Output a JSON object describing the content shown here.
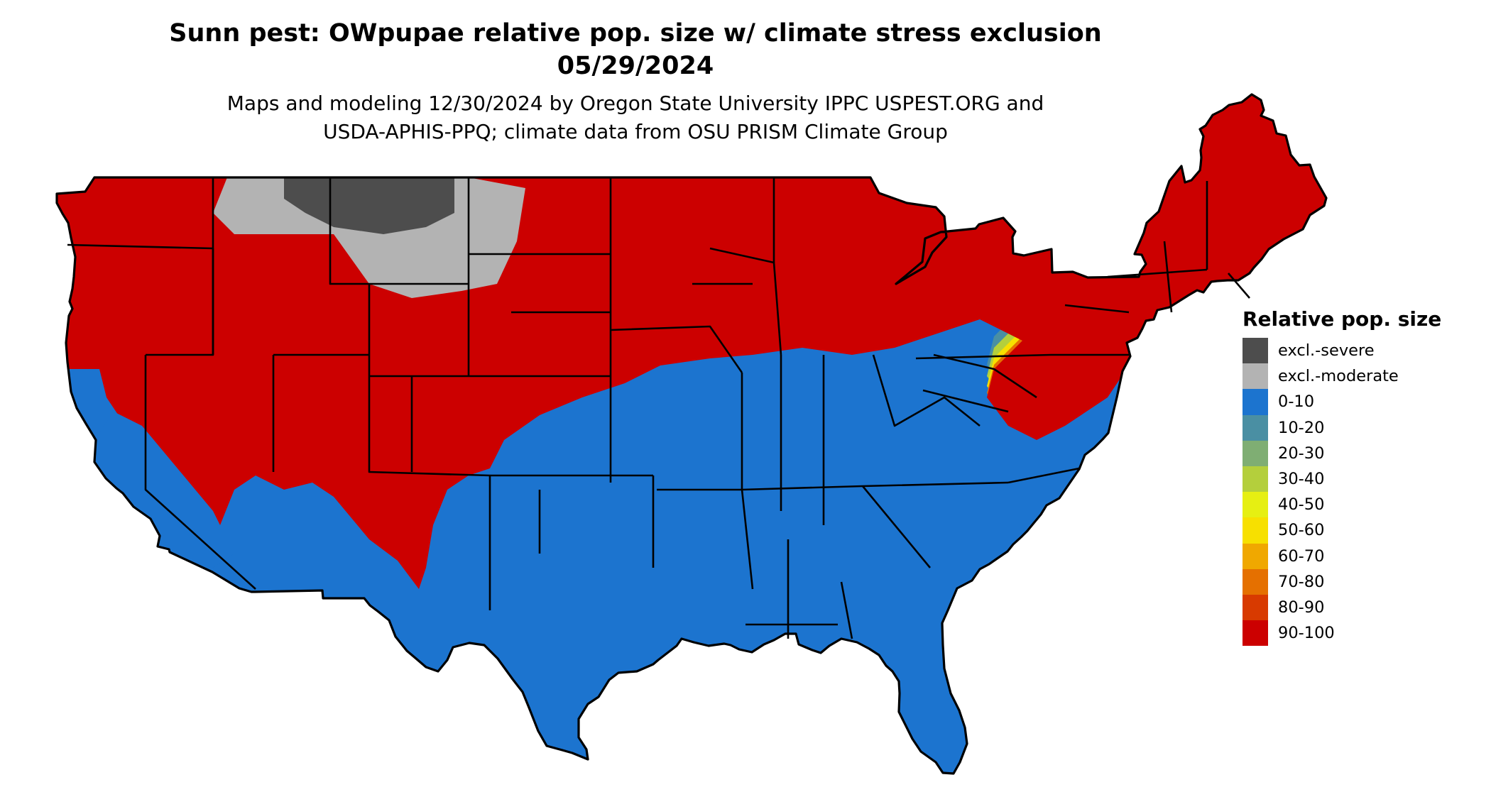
{
  "title": {
    "line1": "Sunn pest: OWpupae relative pop. size w/ climate stress exclusion",
    "line2": "05/29/2024"
  },
  "subtitle": {
    "line1": "Maps and modeling 12/30/2024 by Oregon State University IPPC USPEST.ORG and",
    "line2": "USDA-APHIS-PPQ; climate data from OSU PRISM Climate Group"
  },
  "legend": {
    "title": "Relative pop. size",
    "items": [
      {
        "label": "excl.-severe",
        "color": "#4d4d4d"
      },
      {
        "label": "excl.-moderate",
        "color": "#b3b3b3"
      },
      {
        "label": "0-10",
        "color": "#1c74cf"
      },
      {
        "label": "10-20",
        "color": "#4a8fa3"
      },
      {
        "label": "20-30",
        "color": "#7fae73"
      },
      {
        "label": "30-40",
        "color": "#b4cf3c"
      },
      {
        "label": "40-50",
        "color": "#e6ef12"
      },
      {
        "label": "50-60",
        "color": "#f7e000"
      },
      {
        "label": "60-70",
        "color": "#f0a800"
      },
      {
        "label": "70-80",
        "color": "#e57000"
      },
      {
        "label": "80-90",
        "color": "#d83a00"
      },
      {
        "label": "90-100",
        "color": "#cc0000"
      }
    ]
  },
  "map": {
    "region": "Contiguous United States",
    "colors": {
      "hot": "#cc0000",
      "cold": "#1c74cf",
      "severe": "#4d4d4d",
      "moderate": "#b3b3b3",
      "orange": "#e57000",
      "yellow": "#f7e000",
      "lime": "#b4cf3c",
      "teal": "#4a8fa3",
      "border": "#000000"
    }
  }
}
